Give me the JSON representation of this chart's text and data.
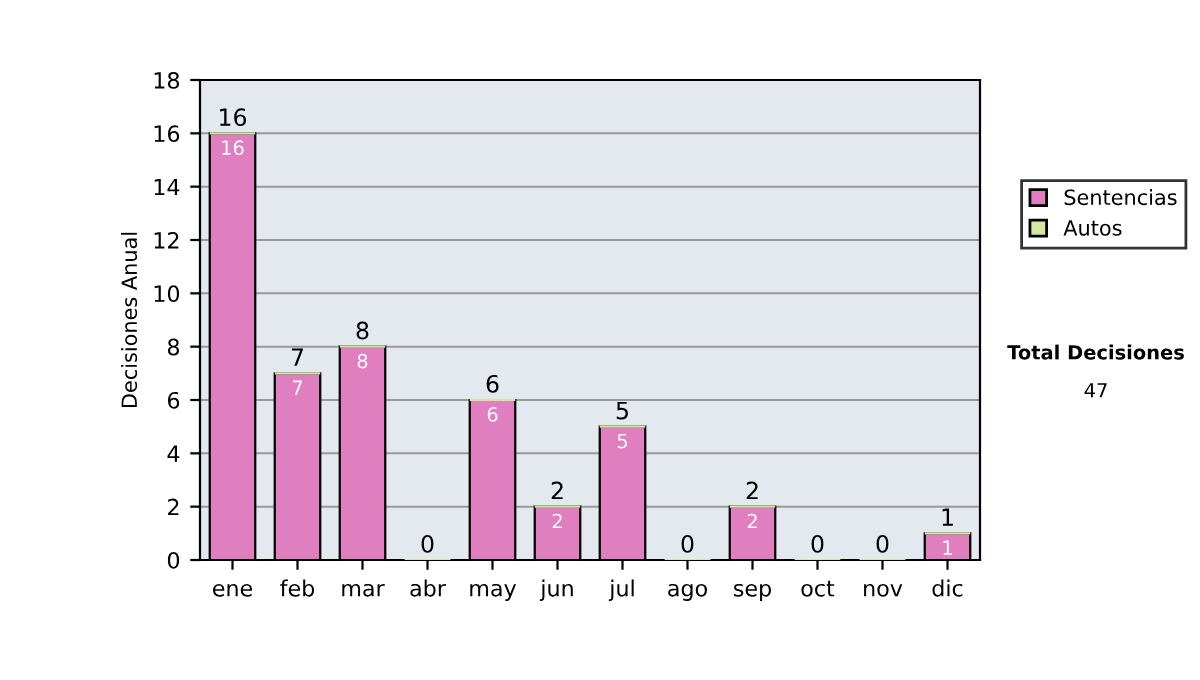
{
  "chart_data": {
    "type": "bar",
    "ylabel": "Decisiones Anual",
    "categories": [
      "ene",
      "feb",
      "mar",
      "abr",
      "may",
      "jun",
      "jul",
      "ago",
      "sep",
      "oct",
      "nov",
      "dic"
    ],
    "series": [
      {
        "name": "Sentencias",
        "color": "#e07fc0",
        "values": [
          16,
          7,
          8,
          0,
          6,
          2,
          5,
          0,
          2,
          0,
          0,
          1
        ],
        "value_labels": [
          "16",
          "7",
          "8",
          null,
          "6",
          "2",
          "5",
          null,
          "2",
          null,
          null,
          "1"
        ]
      },
      {
        "name": "Autos",
        "color": "#d4e8a4",
        "values": [
          0,
          0,
          0,
          0,
          0,
          0,
          0,
          0,
          0,
          0,
          0,
          0
        ]
      }
    ],
    "stacked": true,
    "totals": [
      "16",
      "7",
      "8",
      "0",
      "6",
      "2",
      "5",
      "0",
      "2",
      "0",
      "0",
      "1"
    ],
    "ylim": [
      0,
      18
    ],
    "yticks": [
      0,
      2,
      4,
      6,
      8,
      10,
      12,
      14,
      16,
      18
    ],
    "grid": "y",
    "legend": "right",
    "annotations": [
      "Total Decisiones",
      "47"
    ]
  }
}
